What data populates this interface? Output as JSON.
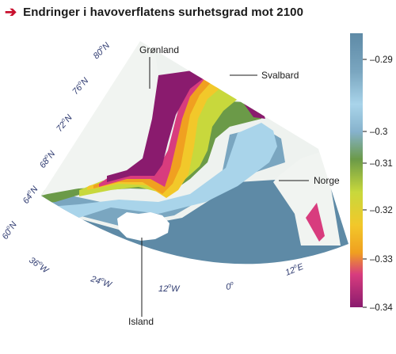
{
  "title": "Endringer i havoverflatens surhetsgrad mot 2100",
  "places": {
    "greenland": "Grønland",
    "svalbard": "Svalbard",
    "norway": "Norge",
    "iceland": "Island"
  },
  "graticule": {
    "lat": [
      {
        "deg": "80",
        "hemi": "N"
      },
      {
        "deg": "76",
        "hemi": "N"
      },
      {
        "deg": "72",
        "hemi": "N"
      },
      {
        "deg": "68",
        "hemi": "N"
      },
      {
        "deg": "64",
        "hemi": "N"
      },
      {
        "deg": "60",
        "hemi": "N"
      }
    ],
    "lon": [
      {
        "deg": "36",
        "hemi": "W"
      },
      {
        "deg": "24",
        "hemi": "W"
      },
      {
        "deg": "12",
        "hemi": "W"
      },
      {
        "deg": "0",
        "hemi": ""
      },
      {
        "deg": "12",
        "hemi": "E"
      }
    ]
  },
  "colorbar": {
    "ticks": [
      "–0.29",
      "–0.3",
      "–0.31",
      "–0.32",
      "–0.33",
      "–0.34"
    ],
    "range": [
      -0.345,
      -0.285
    ],
    "colors": [
      "#5e8aa6",
      "#8fb4c8",
      "#a9d4ea",
      "#6b9a48",
      "#c8d83c",
      "#f2c82a",
      "#d83c7e",
      "#8a1b6e"
    ]
  }
}
